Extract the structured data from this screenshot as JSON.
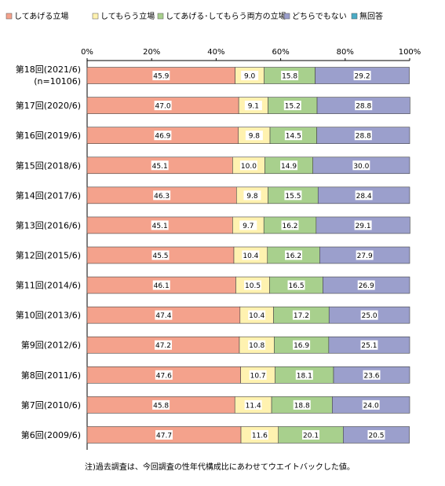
{
  "chart_data": {
    "type": "bar",
    "orientation": "horizontal",
    "stacked": "percent",
    "xlim": [
      0,
      100
    ],
    "x_ticks": [
      "0%",
      "20%",
      "40%",
      "60%",
      "80%",
      "100%"
    ],
    "legend_position": "top",
    "categories": [
      [
        "第18回(2021/6)",
        "(n=10106)"
      ],
      [
        "第17回(2020/6)"
      ],
      [
        "第16回(2019/6)"
      ],
      [
        "第15回(2018/6)"
      ],
      [
        "第14回(2017/6)"
      ],
      [
        "第13回(2016/6)"
      ],
      [
        "第12回(2015/6)"
      ],
      [
        "第11回(2014/6)"
      ],
      [
        "第10回(2013/6)"
      ],
      [
        "第9回(2012/6)"
      ],
      [
        "第8回(2011/6)"
      ],
      [
        "第7回(2010/6)"
      ],
      [
        "第6回(2009/6)"
      ]
    ],
    "series": [
      {
        "name": "してあげる立場",
        "color": "#f4a28c",
        "values": [
          45.9,
          47.0,
          46.9,
          45.1,
          46.3,
          45.1,
          45.5,
          46.1,
          47.4,
          47.2,
          47.6,
          45.8,
          47.7
        ]
      },
      {
        "name": "してもらう立場",
        "color": "#fff2b0",
        "values": [
          9.0,
          9.1,
          9.8,
          10.0,
          9.8,
          9.7,
          10.4,
          10.5,
          10.4,
          10.8,
          10.7,
          11.4,
          11.6
        ]
      },
      {
        "name": "してあげる･してもらう両方の立場",
        "color": "#a8d08d",
        "values": [
          15.8,
          15.2,
          14.5,
          14.9,
          15.5,
          16.2,
          16.2,
          16.5,
          17.2,
          16.9,
          18.1,
          18.8,
          20.1
        ]
      },
      {
        "name": "どちらでもない",
        "color": "#9b9fcc",
        "values": [
          29.2,
          28.8,
          28.8,
          30.0,
          28.4,
          29.1,
          27.9,
          26.9,
          25.0,
          25.1,
          23.6,
          24.0,
          20.5
        ]
      },
      {
        "name": "無回答",
        "color": "#4bacc6",
        "values": [
          0,
          0,
          0,
          0,
          0,
          0,
          0,
          0,
          0,
          0,
          0,
          0,
          0
        ]
      }
    ]
  },
  "footnote": "注)過去調査は、今回調査の性年代構成比にあわせてウエイトバックした値。"
}
